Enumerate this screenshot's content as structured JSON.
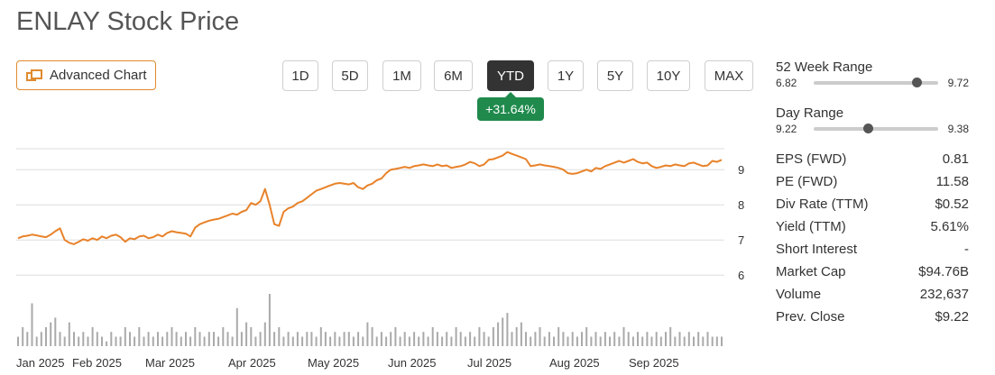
{
  "title": "ENLAY Stock Price",
  "advanced_chart_label": "Advanced Chart",
  "ranges": [
    {
      "label": "1D",
      "active": false
    },
    {
      "label": "5D",
      "active": false
    },
    {
      "label": "1M",
      "active": false
    },
    {
      "label": "6M",
      "active": false
    },
    {
      "label": "YTD",
      "active": true
    },
    {
      "label": "1Y",
      "active": false
    },
    {
      "label": "5Y",
      "active": false
    },
    {
      "label": "10Y",
      "active": false
    },
    {
      "label": "MAX",
      "active": false
    }
  ],
  "change": "+31.64%",
  "colors": {
    "line": "#e8822a",
    "volume": "#aaaaaa",
    "positive": "#1f8a4c",
    "active_tab": "#333333",
    "accent": "#e08a2e"
  },
  "stats": {
    "week52": {
      "label": "52 Week Range",
      "low": "6.82",
      "high": "9.72",
      "current": 9.22,
      "min": 6.82,
      "max": 9.72
    },
    "day": {
      "label": "Day Range",
      "low": "9.22",
      "high": "9.38",
      "current": 9.29,
      "min": 9.22,
      "max": 9.38
    },
    "rows": [
      {
        "label": "EPS (FWD)",
        "value": "0.81"
      },
      {
        "label": "PE (FWD)",
        "value": "11.58"
      },
      {
        "label": "Div Rate (TTM)",
        "value": "$0.52"
      },
      {
        "label": "Yield (TTM)",
        "value": "5.61%"
      },
      {
        "label": "Short Interest",
        "value": "-"
      },
      {
        "label": "Market Cap",
        "value": "$94.76B"
      },
      {
        "label": "Volume",
        "value": "232,637"
      },
      {
        "label": "Prev. Close",
        "value": "$9.22"
      }
    ]
  },
  "chart_data": {
    "type": "line",
    "x_ticks": [
      "Jan 2025",
      "Feb 2025",
      "Mar 2025",
      "Apr 2025",
      "May 2025",
      "Jun 2025",
      "Jul 2025",
      "Aug 2025",
      "Sep 2025"
    ],
    "y_ticks": [
      "6",
      "7",
      "8",
      "9"
    ],
    "ylim": [
      5.8,
      9.8
    ],
    "grid": true,
    "price_series": [
      7.05,
      7.1,
      7.12,
      7.15,
      7.13,
      7.1,
      7.08,
      7.15,
      7.25,
      7.33,
      7.0,
      6.92,
      6.88,
      6.95,
      7.02,
      6.98,
      7.05,
      7.0,
      7.1,
      7.05,
      7.12,
      7.15,
      7.08,
      6.95,
      7.05,
      7.02,
      7.1,
      7.12,
      7.05,
      7.08,
      7.15,
      7.1,
      7.2,
      7.25,
      7.22,
      7.2,
      7.18,
      7.1,
      7.35,
      7.45,
      7.5,
      7.55,
      7.58,
      7.6,
      7.65,
      7.7,
      7.75,
      7.72,
      7.8,
      7.85,
      8.05,
      8.0,
      8.1,
      8.45,
      8.0,
      7.45,
      7.4,
      7.8,
      7.9,
      7.95,
      8.05,
      8.1,
      8.2,
      8.3,
      8.4,
      8.45,
      8.5,
      8.55,
      8.6,
      8.62,
      8.6,
      8.58,
      8.62,
      8.5,
      8.45,
      8.55,
      8.6,
      8.7,
      8.75,
      8.9,
      9.0,
      9.02,
      9.05,
      9.08,
      9.05,
      9.1,
      9.12,
      9.15,
      9.12,
      9.1,
      9.15,
      9.1,
      9.12,
      9.05,
      9.08,
      9.1,
      9.15,
      9.22,
      9.18,
      9.1,
      9.15,
      9.28,
      9.3,
      9.35,
      9.4,
      9.5,
      9.45,
      9.4,
      9.35,
      9.3,
      9.1,
      9.12,
      9.15,
      9.12,
      9.1,
      9.08,
      9.05,
      9.0,
      8.9,
      8.88,
      8.9,
      8.95,
      9.0,
      8.95,
      9.05,
      9.02,
      9.1,
      9.15,
      9.2,
      9.25,
      9.2,
      9.25,
      9.3,
      9.22,
      9.18,
      9.2,
      9.1,
      9.05,
      9.08,
      9.12,
      9.1,
      9.15,
      9.12,
      9.1,
      9.18,
      9.2,
      9.15,
      9.1,
      9.12,
      9.25,
      9.22,
      9.28
    ],
    "volume_series": [
      2,
      4,
      3,
      9,
      2,
      3,
      4,
      5,
      6,
      3,
      2,
      5,
      3,
      2,
      3,
      2,
      4,
      3,
      2,
      1,
      3,
      2,
      2,
      4,
      3,
      2,
      4,
      2,
      3,
      2,
      3,
      2,
      3,
      4,
      3,
      2,
      3,
      2,
      4,
      3,
      2,
      3,
      3,
      2,
      4,
      3,
      2,
      8,
      3,
      5,
      4,
      2,
      3,
      5,
      11,
      3,
      4,
      2,
      3,
      2,
      3,
      2,
      3,
      3,
      2,
      4,
      3,
      2,
      3,
      2,
      3,
      3,
      2,
      3,
      2,
      5,
      4,
      2,
      3,
      2,
      3,
      4,
      2,
      3,
      2,
      3,
      2,
      3,
      2,
      4,
      3,
      2,
      3,
      2,
      4,
      3,
      2,
      3,
      2,
      4,
      3,
      2,
      4,
      5,
      6,
      7,
      3,
      4,
      5,
      3,
      2,
      3,
      4,
      2,
      3,
      2,
      4,
      3,
      2,
      3,
      2,
      3,
      4,
      2,
      3,
      2,
      3,
      2,
      3,
      2,
      4,
      3,
      2,
      3,
      2,
      3,
      2,
      3,
      2,
      3,
      4,
      2,
      3,
      2,
      3,
      2,
      3,
      2,
      3,
      2,
      2,
      2
    ]
  }
}
